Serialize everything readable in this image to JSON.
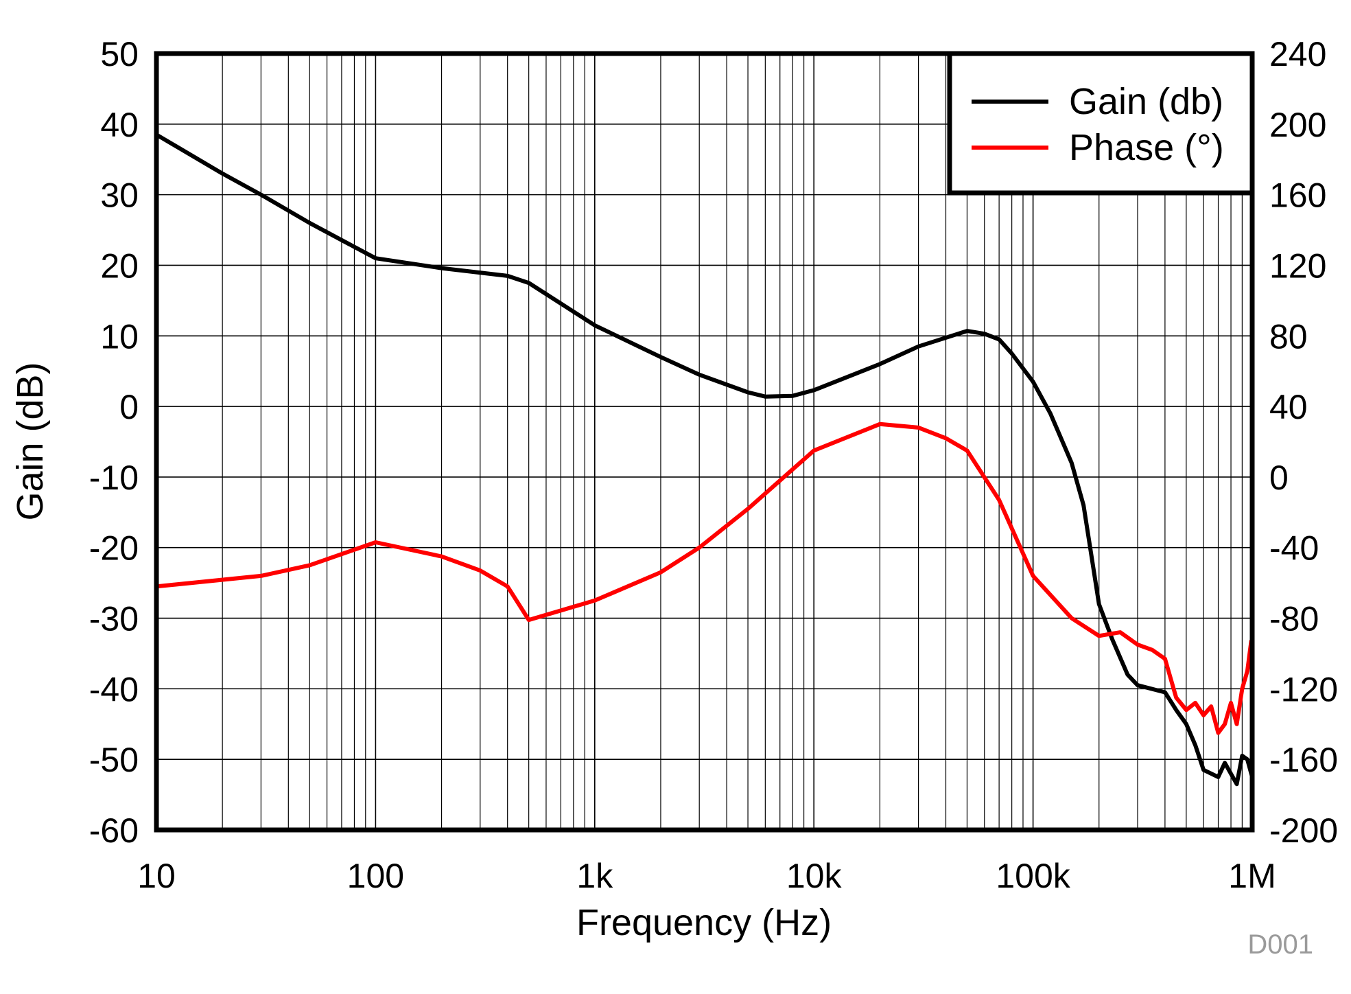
{
  "chart_data": {
    "type": "line",
    "title": "",
    "xlabel": "Frequency (Hz)",
    "ylabel": "Gain (dB)",
    "y2label": "",
    "x_scale": "log",
    "xlim": [
      10,
      1000000
    ],
    "ylim": [
      -60,
      50
    ],
    "y2lim": [
      -200,
      240
    ],
    "grid": true,
    "legend_position": "top-right",
    "watermark": "D001",
    "x_ticks": [
      {
        "value": 10,
        "label": "10"
      },
      {
        "value": 100,
        "label": "100"
      },
      {
        "value": 1000,
        "label": "1k"
      },
      {
        "value": 10000,
        "label": "10k"
      },
      {
        "value": 100000,
        "label": "100k"
      },
      {
        "value": 1000000,
        "label": "1M"
      }
    ],
    "y_ticks": [
      "50",
      "40",
      "30",
      "20",
      "10",
      "0",
      "-10",
      "-20",
      "-30",
      "-40",
      "-50",
      "-60"
    ],
    "y2_ticks": [
      "240",
      "200",
      "160",
      "120",
      "80",
      "40",
      "0",
      "-40",
      "-80",
      "-120",
      "-160",
      "-200"
    ],
    "series": [
      {
        "name": "Gain (db)",
        "axis": "left",
        "color": "#000000",
        "x": [
          10,
          20,
          30,
          50,
          100,
          200,
          400,
          500,
          1000,
          2000,
          3000,
          5000,
          6000,
          8000,
          10000,
          20000,
          30000,
          50000,
          60000,
          70000,
          80000,
          100000,
          120000,
          150000,
          170000,
          200000,
          230000,
          270000,
          300000,
          400000,
          450000,
          500000,
          550000,
          600000,
          700000,
          750000,
          850000,
          900000,
          950000,
          1000000
        ],
        "y": [
          38.5,
          33,
          30,
          26,
          21,
          19.6,
          18.5,
          17.5,
          11.5,
          7,
          4.5,
          2,
          1.4,
          1.5,
          2.3,
          6,
          8.5,
          10.7,
          10.3,
          9.5,
          7.5,
          3.5,
          -1,
          -8,
          -14,
          -28,
          -33,
          -38,
          -39.5,
          -40.5,
          -43,
          -45,
          -48,
          -51.5,
          -52.5,
          -50.5,
          -53.5,
          -49.5,
          -50,
          -52.5
        ]
      },
      {
        "name": "Phase (°)",
        "axis": "right",
        "color": "#ff0000",
        "x": [
          10,
          30,
          50,
          100,
          200,
          300,
          400,
          500,
          1000,
          2000,
          3000,
          5000,
          10000,
          20000,
          30000,
          40000,
          50000,
          70000,
          100000,
          150000,
          200000,
          250000,
          300000,
          350000,
          400000,
          450000,
          500000,
          550000,
          600000,
          650000,
          700000,
          750000,
          800000,
          850000,
          900000,
          950000,
          990000,
          1000000
        ],
        "y": [
          -62,
          -56,
          -50,
          -37,
          -45,
          -53,
          -62,
          -81,
          -70,
          -54,
          -40,
          -18,
          15,
          30,
          28,
          22,
          15,
          -13,
          -56,
          -80,
          -90,
          -88,
          -95,
          -98,
          -103,
          -125,
          -132,
          -128,
          -135,
          -130,
          -145,
          -140,
          -128,
          -140,
          -120,
          -110,
          -93,
          -118
        ]
      }
    ]
  }
}
